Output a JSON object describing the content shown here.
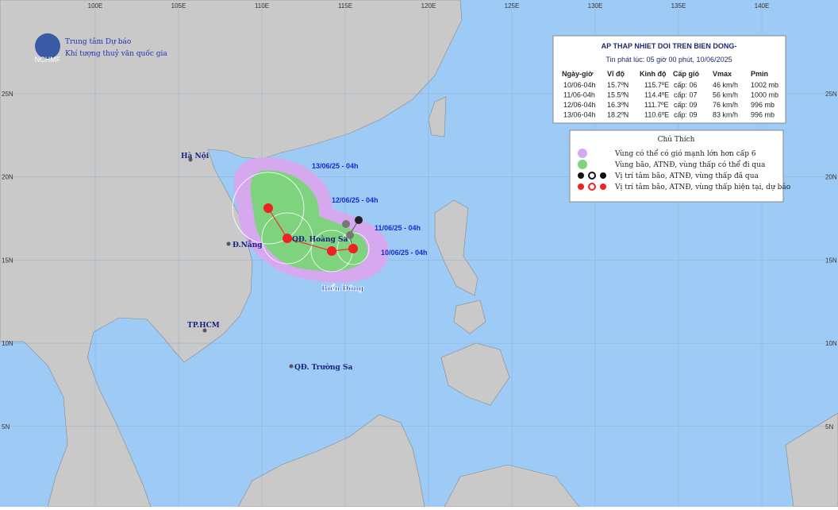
{
  "agency": {
    "line1": "Trung tâm Dự báo",
    "line2": "Khí tượng thuỷ văn quốc gia",
    "logo_text": "NCHMF"
  },
  "grid": {
    "lon_labels": [
      "100E",
      "105E",
      "110E",
      "115E",
      "120E",
      "125E",
      "130E",
      "135E",
      "140E"
    ],
    "lat_labels": [
      "25N",
      "20N",
      "15N",
      "10N",
      "5N"
    ]
  },
  "places": [
    "Hà Nội",
    "Đ.Nẵng",
    "QĐ. Hoàng Sa",
    "TP.HCM",
    "QĐ. Trường Sa",
    "Biển Đông"
  ],
  "track_labels": [
    "13/06/25 - 04h",
    "12/06/25 - 04h",
    "11/06/25 - 04h",
    "10/06/25 - 04h"
  ],
  "info": {
    "title": "AP THAP NHIET DOI TREN BIEN DONG-",
    "issued": "Tin phát lúc: 05 giờ 00 phút, 10/06/2025",
    "headers": [
      "Ngày-giờ",
      "Vĩ độ",
      "Kinh độ",
      "Cấp gió",
      "Vmax",
      "Pmin"
    ],
    "rows": [
      [
        "10/06-04h",
        "15.7ºN",
        "115.7ºE",
        "cấp: 06",
        "46 km/h",
        "1002 mb"
      ],
      [
        "11/06-04h",
        "15.5ºN",
        "114.4ºE",
        "cấp: 07",
        "56 km/h",
        "1000 mb"
      ],
      [
        "12/06-04h",
        "16.3ºN",
        "111.7ºE",
        "cấp: 09",
        "76 km/h",
        "996 mb"
      ],
      [
        "13/06-04h",
        "18.2ºN",
        "110.6ºE",
        "cấp: 09",
        "83 km/h",
        "996 mb"
      ]
    ]
  },
  "legend": {
    "title": "Chú Thích",
    "items": [
      "Vùng có thể có gió mạnh lớn hơn cấp 6",
      "Vùng bão, ATNĐ, vùng thấp có thể đi qua",
      "Vị trí tâm bão, ATNĐ, vùng thấp đã qua",
      "Vị trí tâm bão, ATNĐ, vùng thấp hiện tại, dự báo"
    ]
  }
}
